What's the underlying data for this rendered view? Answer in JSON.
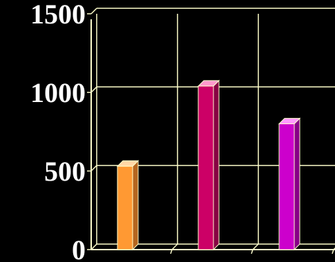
{
  "chart_data": {
    "type": "bar",
    "style": "3d",
    "title": "",
    "xlabel": "",
    "ylabel": "",
    "ylim": [
      0,
      1500
    ],
    "y_ticks": [
      0,
      500,
      1000,
      1500
    ],
    "y_tick_labels": [
      "0",
      "500",
      "1000",
      "1500"
    ],
    "categories": [
      "",
      "",
      ""
    ],
    "values": [
      530,
      1040,
      800
    ],
    "grid": true,
    "legend": "none"
  },
  "colors": {
    "background": "#000000",
    "gridline": "#ffffcc",
    "axis": "#ffffcc",
    "tick_text": "#ffffff",
    "bars": [
      {
        "front": "#ff9933",
        "side": "#b5661f",
        "top": "#ffd7a6"
      },
      {
        "front": "#cc0066",
        "side": "#880044",
        "top": "#ff99cc"
      },
      {
        "front": "#cc00cc",
        "side": "#880088",
        "top": "#ff99ff"
      }
    ]
  }
}
